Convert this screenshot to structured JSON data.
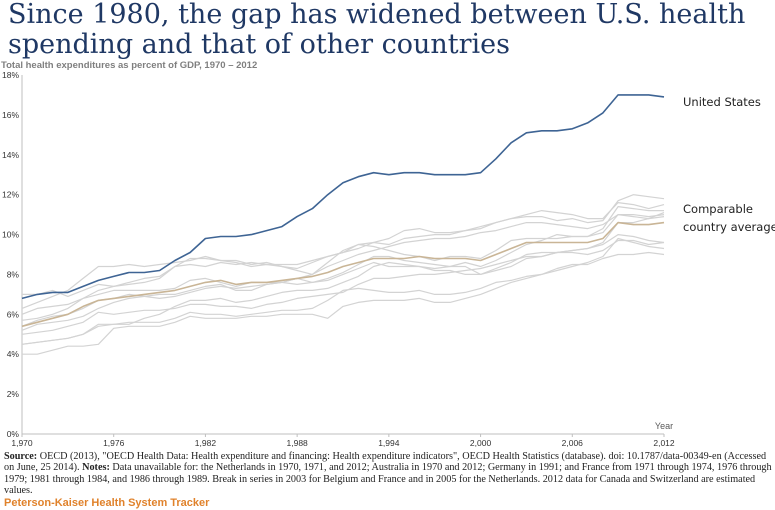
{
  "title": "Since 1980, the gap has widened between U.S. health spending and that of other countries",
  "subtitle": "Total health expenditures as percent of GDP, 1970 – 2012",
  "source_label": "Source:",
  "source_text": " OECD (2013), \"OECD Health Data: Health expenditure and financing: Health expenditure indicators\", OECD Health Statistics (database). doi: 10.1787/data-00349-en (Accessed on June, 25 2014). ",
  "notes_label": "Notes:",
  "notes_text": " Data unavailable for: the Netherlands in 1970, 1971, and 2012; Australia in 1970 and 2012; Germany in 1991; and France from 1971 through 1974, 1976 through 1979; 1981 through 1984, and 1986 through 1989.  Break in series in 2003 for Belgium and France and in 2005 for the Netherlands.  2012 data for Canada and Switzerland are estimated values.",
  "brand": "Peterson-Kaiser Health System Tracker",
  "colors": {
    "us": "#3e6494",
    "avg": "#c9b596",
    "others": "#d3d3d3",
    "title": "#1f3864",
    "brand": "#e0822b"
  },
  "chart_data": {
    "type": "line",
    "xlabel": "Year",
    "ylabel": "",
    "xlim": [
      1970,
      2012
    ],
    "ylim": [
      0,
      18
    ],
    "x_ticks": [
      "1,970",
      "1,976",
      "1,982",
      "1,988",
      "1,994",
      "2,000",
      "2,006",
      "2,012"
    ],
    "x_tick_values": [
      1970,
      1976,
      1982,
      1988,
      1994,
      2000,
      2006,
      2012
    ],
    "y_ticks": [
      "0%",
      "2%",
      "4%",
      "6%",
      "8%",
      "10%",
      "12%",
      "14%",
      "16%",
      "18%"
    ],
    "y_tick_values": [
      0,
      2,
      4,
      6,
      8,
      10,
      12,
      14,
      16,
      18
    ],
    "grid": false,
    "legend": "labels at right end of lines",
    "x": [
      1970,
      1971,
      1972,
      1973,
      1974,
      1975,
      1976,
      1977,
      1978,
      1979,
      1980,
      1981,
      1982,
      1983,
      1984,
      1985,
      1986,
      1987,
      1988,
      1989,
      1990,
      1991,
      1992,
      1993,
      1994,
      1995,
      1996,
      1997,
      1998,
      1999,
      2000,
      2001,
      2002,
      2003,
      2004,
      2005,
      2006,
      2007,
      2008,
      2009,
      2010,
      2011,
      2012
    ],
    "series": [
      {
        "name": "United States",
        "role": "highlight",
        "values": [
          6.8,
          7.0,
          7.1,
          7.1,
          7.4,
          7.7,
          7.9,
          8.1,
          8.1,
          8.2,
          8.7,
          9.1,
          9.8,
          9.9,
          9.9,
          10.0,
          10.2,
          10.4,
          10.9,
          11.3,
          12.0,
          12.6,
          12.9,
          13.1,
          13.0,
          13.1,
          13.1,
          13.0,
          13.0,
          13.0,
          13.1,
          13.8,
          14.6,
          15.1,
          15.2,
          15.2,
          15.3,
          15.6,
          16.1,
          17.0,
          17.0,
          17.0,
          16.9
        ]
      },
      {
        "name": "Comparable country average",
        "role": "average",
        "values": [
          5.4,
          5.6,
          5.8,
          6.0,
          6.4,
          6.7,
          6.8,
          6.9,
          7.0,
          7.1,
          7.2,
          7.4,
          7.6,
          7.7,
          7.5,
          7.6,
          7.6,
          7.7,
          7.8,
          7.9,
          8.1,
          8.4,
          8.6,
          8.8,
          8.8,
          8.8,
          8.9,
          8.8,
          8.8,
          8.8,
          8.7,
          9.0,
          9.3,
          9.6,
          9.6,
          9.6,
          9.6,
          9.6,
          9.8,
          10.6,
          10.5,
          10.5,
          10.6
        ]
      },
      {
        "name": "",
        "role": "other",
        "values": [
          7.0,
          7.0,
          7.2,
          6.9,
          7.2,
          7.5,
          7.4,
          7.6,
          7.8,
          7.9,
          8.4,
          8.8,
          8.8,
          8.7,
          8.6,
          8.4,
          8.5,
          8.4,
          8.2,
          8.0,
          8.6,
          9.2,
          9.5,
          9.4,
          9.2,
          9.0,
          8.9,
          8.7,
          8.9,
          8.9,
          8.8,
          9.2,
          9.7,
          9.8,
          9.8,
          9.8,
          9.9,
          9.9,
          10.3,
          11.4,
          11.3,
          11.2,
          11.2
        ]
      },
      {
        "name": "",
        "role": "other",
        "values": [
          6.3,
          6.6,
          6.9,
          7.2,
          7.8,
          8.4,
          8.4,
          8.5,
          8.4,
          8.5,
          8.6,
          8.7,
          8.9,
          8.7,
          8.7,
          8.5,
          8.6,
          8.4,
          8.3,
          8.6,
          8.9,
          9.1,
          9.5,
          9.6,
          9.5,
          9.8,
          9.9,
          10.0,
          10.0,
          10.2,
          10.4,
          10.6,
          10.8,
          10.9,
          10.9,
          10.7,
          10.8,
          10.6,
          10.7,
          11.7,
          12.0,
          11.9,
          11.8
        ]
      },
      {
        "name": "",
        "role": "other",
        "values": [
          6.0,
          6.3,
          6.4,
          6.5,
          6.8,
          7.2,
          7.4,
          7.5,
          7.6,
          7.8,
          8.4,
          8.5,
          8.4,
          8.6,
          8.5,
          8.6,
          8.5,
          8.5,
          8.5,
          8.7,
          8.9,
          9.1,
          9.3,
          9.6,
          9.8,
          10.2,
          10.3,
          10.1,
          10.1,
          10.2,
          10.3,
          10.6,
          10.8,
          11.0,
          11.2,
          11.1,
          11.0,
          10.8,
          10.8,
          11.6,
          11.5,
          11.3,
          11.5
        ]
      },
      {
        "name": "",
        "role": "other",
        "values": [
          5.4,
          5.7,
          5.9,
          6.0,
          6.3,
          6.7,
          6.8,
          7.0,
          6.9,
          6.8,
          6.9,
          7.1,
          7.3,
          7.4,
          7.3,
          7.4,
          7.5,
          7.6,
          7.8,
          8.0,
          8.4,
          8.7,
          9.0,
          9.2,
          9.4,
          9.6,
          9.7,
          9.8,
          9.8,
          9.9,
          10.1,
          10.2,
          10.4,
          10.6,
          10.6,
          10.5,
          10.4,
          10.3,
          10.5,
          11.0,
          11.0,
          10.9,
          11.0
        ]
      },
      {
        "name": "",
        "role": "other",
        "values": [
          5.2,
          5.5,
          5.6,
          5.7,
          5.9,
          6.3,
          6.6,
          6.8,
          6.9,
          7.0,
          7.0,
          7.2,
          7.4,
          7.5,
          7.2,
          7.2,
          7.5,
          7.6,
          7.8,
          7.6,
          7.8,
          8.1,
          8.5,
          8.9,
          8.9,
          8.7,
          8.6,
          8.5,
          8.4,
          8.6,
          8.4,
          8.7,
          9.1,
          9.5,
          9.7,
          10.0,
          9.9,
          9.9,
          10.1,
          11.0,
          10.9,
          10.8,
          11.1
        ]
      },
      {
        "name": "",
        "role": "other",
        "values": [
          4.5,
          4.6,
          4.7,
          4.8,
          5.0,
          5.4,
          5.5,
          5.5,
          5.8,
          6.0,
          6.4,
          6.7,
          6.7,
          6.8,
          6.6,
          6.7,
          6.9,
          7.1,
          7.2,
          7.2,
          7.3,
          7.6,
          7.9,
          8.4,
          8.6,
          8.5,
          8.4,
          8.3,
          8.4,
          8.4,
          8.0,
          8.3,
          8.6,
          9.0,
          9.1,
          9.1,
          9.2,
          9.3,
          9.5,
          10.0,
          9.9,
          9.7,
          9.6
        ]
      },
      {
        "name": "",
        "role": "other",
        "values": [
          5.7,
          5.8,
          6.0,
          6.3,
          6.8,
          7.0,
          7.2,
          7.2,
          7.2,
          7.2,
          7.3,
          7.7,
          7.8,
          7.6,
          7.4,
          7.6,
          7.6,
          7.6,
          7.5,
          7.6,
          7.7,
          8.0,
          8.3,
          8.6,
          8.4,
          8.4,
          8.4,
          8.2,
          8.2,
          8.0,
          8.0,
          8.2,
          8.4,
          8.8,
          8.9,
          9.1,
          9.2,
          9.3,
          9.6,
          10.6,
          10.6,
          10.8,
          10.9
        ]
      },
      {
        "name": "",
        "role": "other",
        "values": [
          4.5,
          4.6,
          4.7,
          4.8,
          5.0,
          5.5,
          5.5,
          5.6,
          5.6,
          5.6,
          5.8,
          6.1,
          6.0,
          6.0,
          5.9,
          6.0,
          6.1,
          6.2,
          6.2,
          6.3,
          6.7,
          7.2,
          7.3,
          7.2,
          7.1,
          7.1,
          7.2,
          7.0,
          7.0,
          7.1,
          7.3,
          7.6,
          7.7,
          7.9,
          8.0,
          8.2,
          8.4,
          8.6,
          8.9,
          9.8,
          9.6,
          9.4,
          9.3
        ]
      },
      {
        "name": "",
        "role": "other",
        "values": [
          4.0,
          4.0,
          4.2,
          4.4,
          4.4,
          4.5,
          5.3,
          5.4,
          5.4,
          5.4,
          5.6,
          5.9,
          5.8,
          5.8,
          5.8,
          5.9,
          5.9,
          6.0,
          6.0,
          6.0,
          5.8,
          6.4,
          6.6,
          6.7,
          6.7,
          6.7,
          6.8,
          6.6,
          6.6,
          6.8,
          7.0,
          7.3,
          7.6,
          7.8,
          8.0,
          8.3,
          8.5,
          8.5,
          8.8,
          9.0,
          9.0,
          9.1,
          9.0
        ]
      },
      {
        "name": "",
        "role": "other",
        "values": [
          5.0,
          5.1,
          5.2,
          5.4,
          5.6,
          6.1,
          6.0,
          6.1,
          6.2,
          6.2,
          6.3,
          6.5,
          6.5,
          6.4,
          6.4,
          6.3,
          6.5,
          6.6,
          6.8,
          6.9,
          7.0,
          7.1,
          7.5,
          7.8,
          7.8,
          7.9,
          8.0,
          8.0,
          8.1,
          8.2,
          8.3,
          8.5,
          8.7,
          8.9,
          8.9,
          9.1,
          9.1,
          9.0,
          9.2,
          9.7,
          9.7,
          9.5,
          9.6
        ]
      }
    ]
  }
}
